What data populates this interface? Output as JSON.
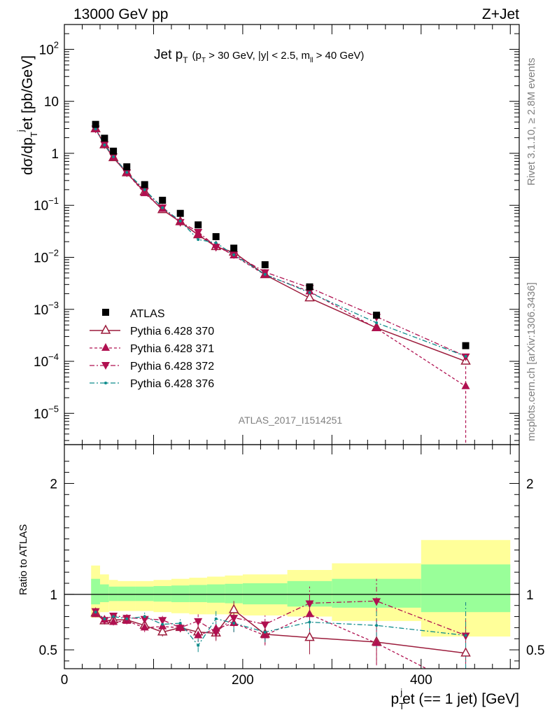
{
  "header": {
    "left": "13000 GeV pp",
    "right": "Z+Jet"
  },
  "side_labels": {
    "rivet": "Rivet 3.1.10, ≥ 2.8M events",
    "mcplots": "mcplots.cern.ch [arXiv:1306.3436]"
  },
  "plot_title": {
    "main": "Jet p",
    "main_sub": "T",
    "cut_open": "(p",
    "cut_sub1": "T",
    "cut_mid": " > 30 GeV, |y| < 2.5, m",
    "cut_sub2": "ll",
    "cut_close": " > 40 GeV)"
  },
  "watermark": "ATLAS_2017_I1514251",
  "axes": {
    "ylabel_top": "dσ/dp",
    "ylabel_top_sub": "T",
    "ylabel_top_sup": "j",
    "ylabel_top_tail": "et [pb/GeV]",
    "ylabel_bottom": "Ratio to ATLAS",
    "xlabel_p": "p",
    "xlabel_sub": "T",
    "xlabel_sup": "j",
    "xlabel_tail": "et (== 1 jet) [GeV]"
  },
  "legend": [
    {
      "label": "ATLAS"
    },
    {
      "label": "Pythia 6.428 370"
    },
    {
      "label": "Pythia 6.428 371"
    },
    {
      "label": "Pythia 6.428 372"
    },
    {
      "label": "Pythia 6.428 376"
    }
  ],
  "colors": {
    "data": "#000000",
    "p370": "#9c1c3c",
    "p371": "#b01050",
    "p372": "#b01050",
    "p376": "#0f8c8c",
    "band_inner": "#99ff99",
    "band_outer": "#ffff99"
  },
  "chart_data": [
    {
      "type": "scatter",
      "yscale": "log",
      "xlim": [
        0,
        510
      ],
      "ylim": [
        2.5e-06,
        300
      ],
      "y_ticks": [
        "10^-5",
        "10^-4",
        "10^-3",
        "10^-2",
        "10^-1",
        "1",
        "10",
        "10^2"
      ],
      "x": [
        35,
        45,
        55,
        70,
        90,
        110,
        130,
        150,
        170,
        190,
        225,
        275,
        350,
        450
      ],
      "series": [
        {
          "name": "ATLAS",
          "style": "square",
          "values": [
            3.6,
            1.95,
            1.1,
            0.55,
            0.25,
            0.125,
            0.07,
            0.042,
            0.025,
            0.015,
            0.0072,
            0.0027,
            0.00077,
            0.0002
          ]
        },
        {
          "name": "Pythia 6.428 370",
          "style": "open-triangle-up-solid",
          "values": [
            2.95,
            1.45,
            0.82,
            0.42,
            0.18,
            0.082,
            0.048,
            0.027,
            0.016,
            0.0125,
            0.0046,
            0.00165,
            0.00044,
            0.0001
          ]
        },
        {
          "name": "Pythia 6.428 371",
          "style": "triangle-up-dashed",
          "values": [
            2.9,
            1.48,
            0.83,
            0.42,
            0.17,
            0.085,
            0.048,
            0.027,
            0.017,
            0.0108,
            0.0046,
            0.0022,
            0.00043,
            3.3e-05
          ]
        },
        {
          "name": "Pythia 6.428 372",
          "style": "triangle-down-dashdot",
          "values": [
            3.0,
            1.5,
            0.88,
            0.43,
            0.19,
            0.092,
            0.048,
            0.031,
            0.016,
            0.0115,
            0.0052,
            0.0026,
            0.00072,
            0.000125
          ]
        },
        {
          "name": "Pythia 6.428 376",
          "style": "dot-dashdot",
          "values": [
            2.95,
            1.45,
            0.86,
            0.43,
            0.2,
            0.09,
            0.05,
            0.022,
            0.019,
            0.0112,
            0.0047,
            0.0021,
            0.00055,
            0.000125
          ]
        }
      ]
    },
    {
      "type": "line",
      "xlim": [
        0,
        510
      ],
      "ylim": [
        0.33,
        2.35
      ],
      "x_ticks": [
        "0",
        "200",
        "400"
      ],
      "y_ticks": [
        "0.5",
        "1",
        "2"
      ],
      "ylabel": "Ratio to ATLAS",
      "x": [
        35,
        45,
        55,
        70,
        90,
        110,
        130,
        150,
        170,
        190,
        225,
        275,
        350,
        450
      ],
      "series": [
        {
          "name": "Pythia 6.428 370",
          "values": [
            0.83,
            0.76,
            0.77,
            0.77,
            0.72,
            0.66,
            0.7,
            0.66,
            0.65,
            0.86,
            0.64,
            0.61,
            0.57,
            0.47
          ]
        },
        {
          "name": "Pythia 6.428 371",
          "values": [
            0.82,
            0.77,
            0.75,
            0.76,
            0.7,
            0.71,
            0.7,
            0.63,
            0.69,
            0.74,
            0.63,
            0.82,
            0.56,
            0.15
          ]
        },
        {
          "name": "Pythia 6.428 372",
          "values": [
            0.85,
            0.77,
            0.81,
            0.79,
            0.78,
            0.77,
            0.7,
            0.76,
            0.66,
            0.79,
            0.73,
            0.92,
            0.94,
            0.63
          ]
        },
        {
          "name": "Pythia 6.428 376",
          "values": [
            0.84,
            0.78,
            0.8,
            0.78,
            0.8,
            0.73,
            0.74,
            0.54,
            0.78,
            0.74,
            0.66,
            0.75,
            0.72,
            0.63
          ]
        }
      ],
      "uncertainty_band": {
        "edges": [
          30,
          40,
          50,
          60,
          80,
          100,
          120,
          140,
          160,
          180,
          200,
          250,
          300,
          400,
          500
        ],
        "inner_low": [
          0.91,
          0.93,
          0.94,
          0.94,
          0.94,
          0.935,
          0.93,
          0.93,
          0.925,
          0.92,
          0.91,
          0.89,
          0.88,
          0.84
        ],
        "inner_high": [
          1.14,
          1.09,
          1.07,
          1.07,
          1.07,
          1.075,
          1.08,
          1.085,
          1.09,
          1.095,
          1.1,
          1.12,
          1.14,
          1.27
        ],
        "outer_low": [
          0.79,
          0.84,
          0.85,
          0.85,
          0.85,
          0.84,
          0.83,
          0.82,
          0.82,
          0.82,
          0.81,
          0.8,
          0.76,
          0.62
        ],
        "outer_high": [
          1.26,
          1.18,
          1.13,
          1.12,
          1.12,
          1.13,
          1.14,
          1.15,
          1.16,
          1.17,
          1.18,
          1.22,
          1.28,
          1.49
        ]
      }
    }
  ]
}
